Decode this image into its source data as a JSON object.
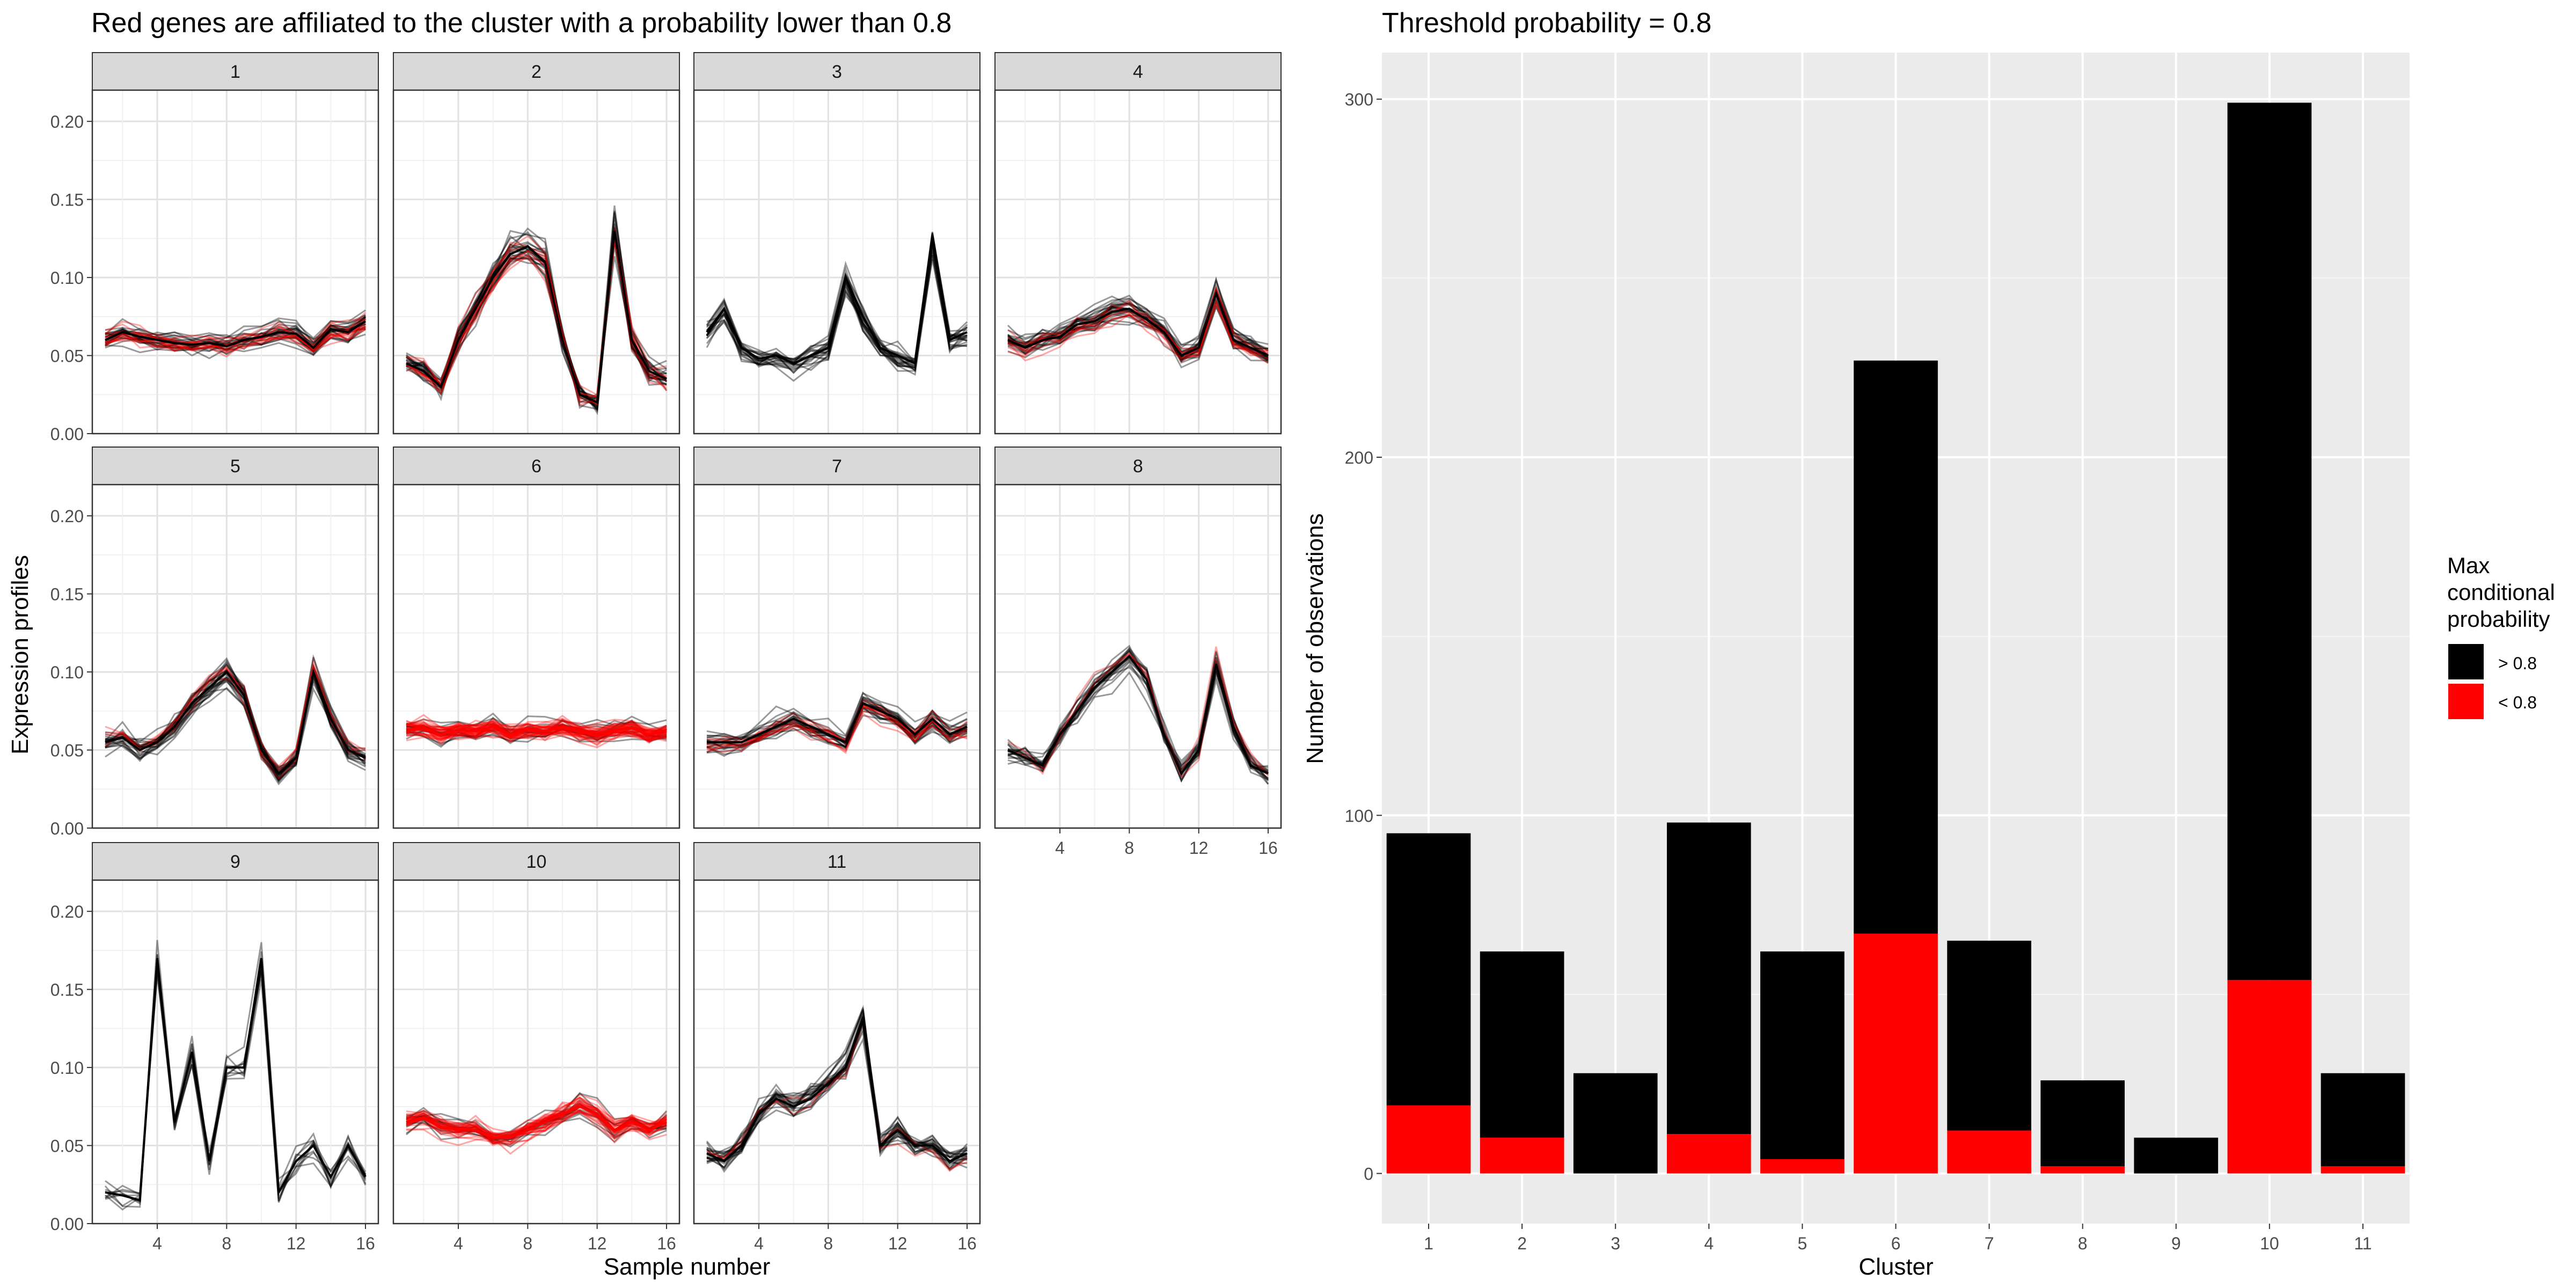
{
  "left_panel": {
    "title": "Red genes are affiliated to the cluster with a probability lower than 0.8",
    "xlabel": "Sample number",
    "ylabel": "Expression profiles",
    "y_ticks": [
      "0.00",
      "0.05",
      "0.10",
      "0.15",
      "0.20"
    ],
    "x_ticks": [
      "4",
      "8",
      "12",
      "16"
    ],
    "facets": [
      "1",
      "2",
      "3",
      "4",
      "5",
      "6",
      "7",
      "8",
      "9",
      "10",
      "11"
    ]
  },
  "right_panel": {
    "title": "Threshold probability = 0.8",
    "legend": {
      "title_lines": [
        "Max",
        "conditional",
        "probability"
      ],
      "items": [
        {
          "label": "> 0.8",
          "color": "#000000"
        },
        {
          "label": "< 0.8",
          "color": "#ff0000"
        }
      ]
    }
  },
  "colors": {
    "above": "#000000",
    "below": "#ff0000",
    "strip_bg": "#d9d9d9",
    "panel_bg": "#ebebeb",
    "grid": "#ffffff",
    "text": "#4d4d4d"
  },
  "chart_data": [
    {
      "type": "line",
      "title": "Red genes are affiliated to the cluster with a probability lower than 0.8",
      "xlabel": "Sample number",
      "ylabel": "Expression profiles",
      "xlim": [
        1,
        16
      ],
      "ylim": [
        0,
        0.22
      ],
      "series": [
        {
          "facet": "1",
          "x": [
            1,
            2,
            3,
            4,
            5,
            6,
            7,
            8,
            9,
            10,
            11,
            12,
            13,
            14,
            15,
            16
          ],
          "values": [
            0.06,
            0.065,
            0.062,
            0.06,
            0.058,
            0.057,
            0.058,
            0.056,
            0.06,
            0.062,
            0.065,
            0.064,
            0.055,
            0.067,
            0.065,
            0.072
          ],
          "n_black": 24,
          "n_red": 12
        },
        {
          "facet": "2",
          "x": [
            1,
            2,
            3,
            4,
            5,
            6,
            7,
            8,
            9,
            10,
            11,
            12,
            13,
            14,
            15,
            16
          ],
          "values": [
            0.045,
            0.04,
            0.03,
            0.06,
            0.08,
            0.1,
            0.115,
            0.12,
            0.11,
            0.06,
            0.025,
            0.02,
            0.13,
            0.06,
            0.04,
            0.035
          ],
          "n_black": 24,
          "n_red": 8
        },
        {
          "facet": "3",
          "x": [
            1,
            2,
            3,
            4,
            5,
            6,
            7,
            8,
            9,
            10,
            11,
            12,
            13,
            14,
            15,
            16
          ],
          "values": [
            0.065,
            0.08,
            0.055,
            0.048,
            0.05,
            0.045,
            0.05,
            0.055,
            0.1,
            0.075,
            0.055,
            0.05,
            0.045,
            0.125,
            0.06,
            0.065
          ],
          "n_black": 22,
          "n_red": 0
        },
        {
          "facet": "4",
          "x": [
            1,
            2,
            3,
            4,
            5,
            6,
            7,
            8,
            9,
            10,
            11,
            12,
            13,
            14,
            15,
            16
          ],
          "values": [
            0.06,
            0.055,
            0.06,
            0.062,
            0.07,
            0.072,
            0.078,
            0.08,
            0.073,
            0.065,
            0.05,
            0.055,
            0.09,
            0.06,
            0.055,
            0.05
          ],
          "n_black": 26,
          "n_red": 8
        },
        {
          "facet": "5",
          "x": [
            1,
            2,
            3,
            4,
            5,
            6,
            7,
            8,
            9,
            10,
            11,
            12,
            13,
            14,
            15,
            16
          ],
          "values": [
            0.055,
            0.058,
            0.05,
            0.055,
            0.065,
            0.08,
            0.09,
            0.1,
            0.085,
            0.05,
            0.035,
            0.045,
            0.1,
            0.07,
            0.05,
            0.045
          ],
          "n_black": 24,
          "n_red": 4
        },
        {
          "facet": "6",
          "x": [
            1,
            2,
            3,
            4,
            5,
            6,
            7,
            8,
            9,
            10,
            11,
            12,
            13,
            14,
            15,
            16
          ],
          "values": [
            0.063,
            0.064,
            0.06,
            0.063,
            0.062,
            0.065,
            0.06,
            0.063,
            0.062,
            0.065,
            0.062,
            0.06,
            0.063,
            0.064,
            0.06,
            0.062
          ],
          "n_black": 14,
          "n_red": 40
        },
        {
          "facet": "7",
          "x": [
            1,
            2,
            3,
            4,
            5,
            6,
            7,
            8,
            9,
            10,
            11,
            12,
            13,
            14,
            15,
            16
          ],
          "values": [
            0.055,
            0.055,
            0.055,
            0.06,
            0.065,
            0.07,
            0.065,
            0.06,
            0.055,
            0.08,
            0.075,
            0.07,
            0.06,
            0.07,
            0.06,
            0.065
          ],
          "n_black": 22,
          "n_red": 8
        },
        {
          "facet": "8",
          "x": [
            1,
            2,
            3,
            4,
            5,
            6,
            7,
            8,
            9,
            10,
            11,
            12,
            13,
            14,
            15,
            16
          ],
          "values": [
            0.05,
            0.045,
            0.04,
            0.06,
            0.075,
            0.09,
            0.1,
            0.11,
            0.095,
            0.06,
            0.035,
            0.05,
            0.105,
            0.065,
            0.04,
            0.035
          ],
          "n_black": 18,
          "n_red": 2
        },
        {
          "facet": "9",
          "x": [
            1,
            2,
            3,
            4,
            5,
            6,
            7,
            8,
            9,
            10,
            11,
            12,
            13,
            14,
            15,
            16
          ],
          "values": [
            0.02,
            0.018,
            0.015,
            0.17,
            0.065,
            0.11,
            0.04,
            0.1,
            0.1,
            0.17,
            0.02,
            0.04,
            0.05,
            0.03,
            0.05,
            0.03
          ],
          "n_black": 10,
          "n_red": 0
        },
        {
          "facet": "10",
          "x": [
            1,
            2,
            3,
            4,
            5,
            6,
            7,
            8,
            9,
            10,
            11,
            12,
            13,
            14,
            15,
            16
          ],
          "values": [
            0.065,
            0.068,
            0.062,
            0.06,
            0.06,
            0.055,
            0.055,
            0.06,
            0.065,
            0.07,
            0.075,
            0.07,
            0.06,
            0.065,
            0.06,
            0.065
          ],
          "n_black": 14,
          "n_red": 30
        },
        {
          "facet": "11",
          "x": [
            1,
            2,
            3,
            4,
            5,
            6,
            7,
            8,
            9,
            10,
            11,
            12,
            13,
            14,
            15,
            16
          ],
          "values": [
            0.045,
            0.04,
            0.05,
            0.07,
            0.08,
            0.075,
            0.08,
            0.09,
            0.1,
            0.13,
            0.05,
            0.06,
            0.05,
            0.05,
            0.04,
            0.045
          ],
          "n_black": 22,
          "n_red": 2
        }
      ]
    },
    {
      "type": "bar",
      "title": "Threshold probability = 0.8",
      "xlabel": "Cluster",
      "ylabel": "Number of observations",
      "categories": [
        "1",
        "2",
        "3",
        "4",
        "5",
        "6",
        "7",
        "8",
        "9",
        "10",
        "11"
      ],
      "series": [
        {
          "name": "> 0.8",
          "values": [
            76,
            52,
            28,
            87,
            58,
            160,
            53,
            24,
            10,
            245,
            26
          ]
        },
        {
          "name": "< 0.8",
          "values": [
            19,
            10,
            0,
            11,
            4,
            67,
            12,
            2,
            0,
            54,
            2
          ]
        }
      ],
      "y_ticks": [
        0,
        100,
        200,
        300
      ],
      "ylim": [
        -14,
        313
      ],
      "stacked": true
    }
  ]
}
